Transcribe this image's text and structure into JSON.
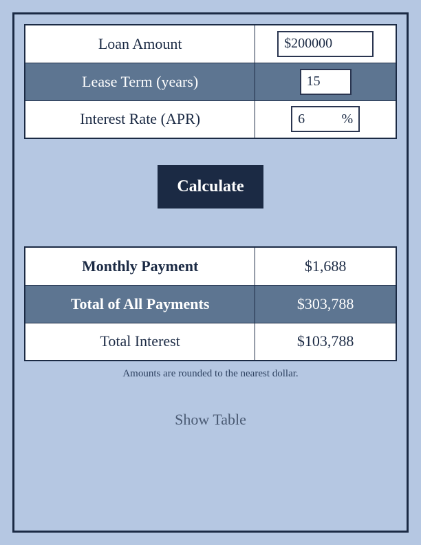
{
  "colors": {
    "page_bg": "#b5c7e2",
    "panel_bg": "#b5c7e2",
    "panel_border": "#1b2a44",
    "row_light_bg": "#ffffff",
    "row_dark_bg": "#5d7591",
    "row_dark_text": "#ffffff",
    "text_dark": "#1b2a44",
    "field_border": "#2a3550",
    "calc_bg": "#1b2a44",
    "footnote_color": "#2d4160",
    "showtable_color": "#4a5a73"
  },
  "inputs": {
    "loan_amount": {
      "label": "Loan Amount",
      "value": "$200000"
    },
    "lease_term": {
      "label": "Lease Term (years)",
      "value": "15"
    },
    "interest": {
      "label": "Interest Rate (APR)",
      "value": "6",
      "suffix": "%"
    }
  },
  "calculate_label": "Calculate",
  "outputs": {
    "monthly": {
      "label": "Monthly Payment",
      "value": "$1,688"
    },
    "total_payments": {
      "label": "Total of All Payments",
      "value": "$303,788"
    },
    "total_interest": {
      "label": "Total Interest",
      "value": "$103,788"
    }
  },
  "footnote": "Amounts are rounded to the nearest dollar.",
  "show_table_label": "Show Table"
}
